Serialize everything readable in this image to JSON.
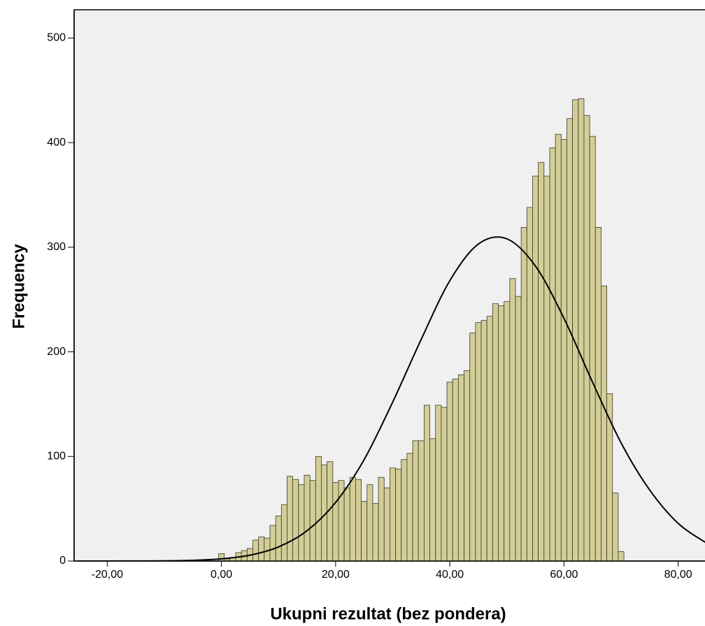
{
  "chart_data": {
    "type": "histogram",
    "x_label": "Ukupni rezultat (bez pondera)",
    "y_label": "Frequency",
    "bins": [
      -0.5,
      0.5,
      1.5,
      2.5,
      3.5,
      4.5,
      5.5,
      6.5,
      7.5,
      8.5,
      9.5,
      10.5,
      11.5,
      12.5,
      13.5,
      14.5,
      15.5,
      16.5,
      17.5,
      18.5,
      19.5,
      20.5,
      21.5,
      22.5,
      23.5,
      24.5,
      25.5,
      26.5,
      27.5,
      28.5,
      29.5,
      30.5,
      31.5,
      32.5,
      33.5,
      34.5,
      35.5,
      36.5,
      37.5,
      38.5,
      39.5,
      40.5,
      41.5,
      42.5,
      43.5,
      44.5,
      45.5,
      46.5,
      47.5,
      48.5,
      49.5,
      50.5,
      51.5,
      52.5,
      53.5,
      54.5,
      55.5,
      56.5,
      57.5,
      58.5,
      59.5,
      60.5,
      61.5,
      62.5,
      63.5,
      64.5,
      65.5,
      66.5,
      67.5,
      68.5,
      69.5,
      70.5
    ],
    "values": [
      7,
      2,
      3,
      8,
      10,
      12,
      20,
      23,
      22,
      34,
      43,
      54,
      81,
      78,
      73,
      82,
      77,
      100,
      92,
      95,
      75,
      77,
      70,
      80,
      78,
      57,
      73,
      55,
      80,
      70,
      89,
      88,
      97,
      103,
      115,
      115,
      149,
      117,
      149,
      147,
      171,
      174,
      178,
      182,
      218,
      228,
      230,
      234,
      246,
      244,
      248,
      270,
      253,
      319,
      338,
      368,
      381,
      368,
      395,
      408,
      403,
      423,
      441,
      442,
      426,
      406,
      319,
      263,
      160,
      65,
      9
    ],
    "color": "#d3ce97",
    "curve": {
      "x": [
        -25,
        -20,
        -15,
        -10,
        -5,
        0,
        5,
        10,
        15,
        20,
        25,
        30,
        35,
        40,
        45,
        50,
        55,
        60,
        65,
        70,
        75,
        80,
        85
      ],
      "values": [
        0,
        0,
        0.1,
        0.2,
        0.7,
        2.1,
        5.6,
        13.5,
        29,
        56,
        97,
        152,
        212,
        268,
        303,
        308,
        282,
        232,
        171,
        113,
        68,
        36,
        17
      ]
    },
    "xlim": [
      -25.8,
      84.7
    ],
    "ylim": [
      0,
      527
    ],
    "xticks": [
      {
        "value": -20,
        "label": "-20,00"
      },
      {
        "value": 0,
        "label": "0,00"
      },
      {
        "value": 20,
        "label": "20,00"
      },
      {
        "value": 40,
        "label": "40,00"
      },
      {
        "value": 60,
        "label": "60,00"
      },
      {
        "value": 80,
        "label": "80,00"
      }
    ],
    "yticks": [
      0,
      100,
      200,
      300,
      400,
      500
    ]
  }
}
